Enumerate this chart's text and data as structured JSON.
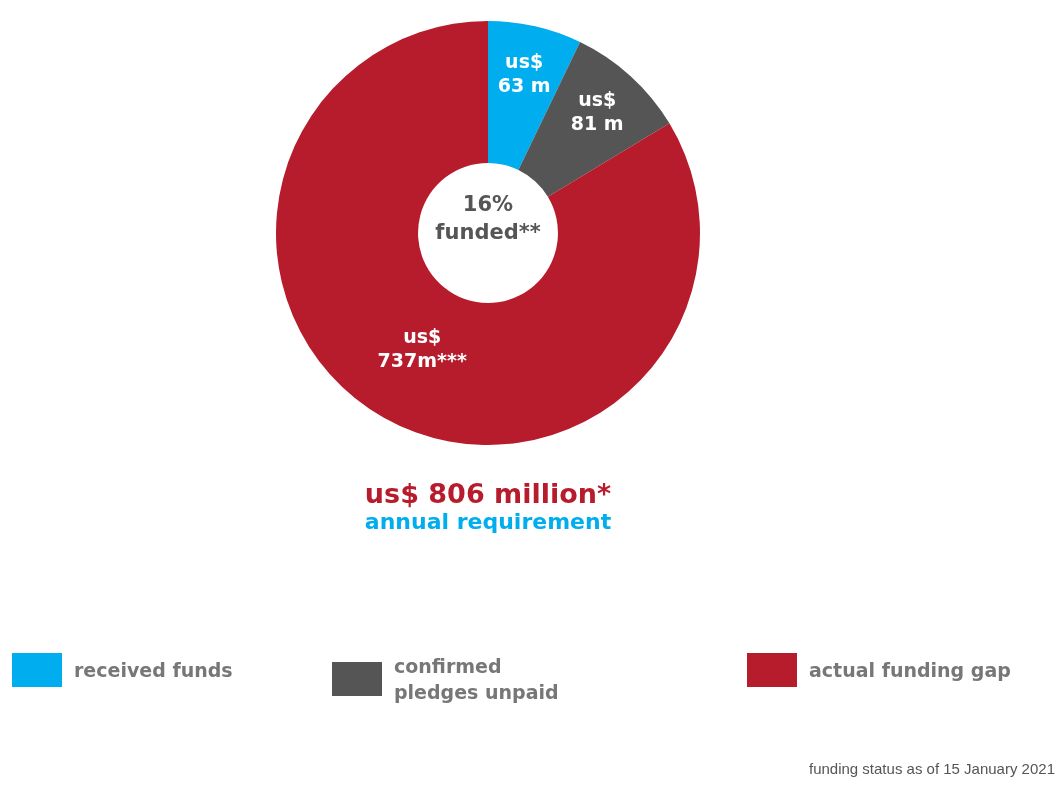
{
  "chart_data": {
    "type": "donut",
    "title": "us$ 806 million*",
    "subtitle": "annual requirement",
    "categories": [
      "received funds",
      "confirmed pledges unpaid",
      "actual funding gap"
    ],
    "values": [
      63,
      81,
      737
    ],
    "colors": [
      "#00aeef",
      "#555555",
      "#b71c2c"
    ],
    "value_labels": [
      "us$ 63 m",
      "us$ 81 m",
      "us$ 737m***"
    ],
    "annotations": [
      "16% funded**",
      "funding status as of 15 January 2021"
    ],
    "legend": "bottom"
  }
}
